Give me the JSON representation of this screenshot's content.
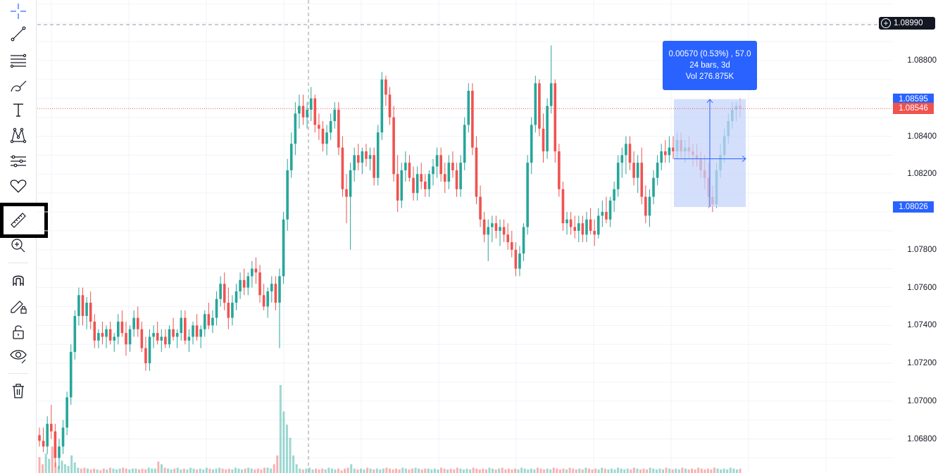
{
  "toolbar": {
    "tools": [
      {
        "name": "crosshair-icon",
        "label": "Crosshair"
      },
      {
        "name": "trend-line-icon",
        "label": "Trend line"
      },
      {
        "name": "fib-retracement-icon",
        "label": "Fib retracement"
      },
      {
        "name": "brush-icon",
        "label": "Brush"
      },
      {
        "name": "text-icon",
        "label": "Text"
      },
      {
        "name": "pattern-icon",
        "label": "Patterns"
      },
      {
        "name": "forecasting-icon",
        "label": "Prediction and measurement"
      },
      {
        "name": "heart-icon",
        "label": "Icons"
      },
      {
        "name": "ruler-icon",
        "label": "Measure"
      },
      {
        "name": "zoom-in-icon",
        "label": "Zoom in"
      },
      {
        "name": "magnet-icon",
        "label": "Magnet"
      },
      {
        "name": "pencil-lock-icon",
        "label": "Stay in drawing mode"
      },
      {
        "name": "lock-icon",
        "label": "Lock all drawings"
      },
      {
        "name": "eye-icon",
        "label": "Hide all drawings"
      },
      {
        "name": "trash-icon",
        "label": "Remove drawings"
      }
    ]
  },
  "price_axis": {
    "ticks": [
      "1.08800",
      "1.08400",
      "1.08200",
      "1.07800",
      "1.07600",
      "1.07400",
      "1.07200",
      "1.07000",
      "1.06800"
    ],
    "crosshair_price": "1.08990",
    "measure_top": "1.08595",
    "current_price": "1.08546",
    "measure_bottom": "1.08026"
  },
  "measure_tooltip": {
    "line1": "0.00570 (0.53%) , 57.0",
    "line2": "24 bars, 3d",
    "line3": "Vol 276.875K"
  },
  "colors": {
    "up": "#26a69a",
    "down": "#ef5350",
    "accent": "#2962ff",
    "measure_fill": "#c6d4fb"
  },
  "chart_data": {
    "type": "candlestick",
    "ylim": [
      1.0662,
      1.0912
    ],
    "candles": [
      [
        1.0682,
        1.0686,
        1.0676,
        1.0679
      ],
      [
        1.0679,
        1.0686,
        1.0673,
        1.0676
      ],
      [
        1.0676,
        1.0692,
        1.0672,
        1.0688
      ],
      [
        1.0688,
        1.0698,
        1.068,
        1.0684
      ],
      [
        1.0684,
        1.0688,
        1.0665,
        1.067
      ],
      [
        1.067,
        1.068,
        1.0664,
        1.0676
      ],
      [
        1.0676,
        1.069,
        1.0672,
        1.0686
      ],
      [
        1.0686,
        1.0705,
        1.0682,
        1.0702
      ],
      [
        1.0702,
        1.073,
        1.0698,
        1.0726
      ],
      [
        1.0726,
        1.0748,
        1.0722,
        1.0745
      ],
      [
        1.0745,
        1.076,
        1.074,
        1.0756
      ],
      [
        1.0756,
        1.076,
        1.074,
        1.0745
      ],
      [
        1.0745,
        1.0755,
        1.0738,
        1.0752
      ],
      [
        1.0752,
        1.0758,
        1.0738,
        1.0742
      ],
      [
        1.0742,
        1.0746,
        1.0728,
        1.0732
      ],
      [
        1.0732,
        1.0738,
        1.0728,
        1.0736
      ],
      [
        1.0736,
        1.0742,
        1.073,
        1.0734
      ],
      [
        1.0734,
        1.074,
        1.0728,
        1.0738
      ],
      [
        1.0738,
        1.0742,
        1.073,
        1.0732
      ],
      [
        1.0732,
        1.0736,
        1.0726,
        1.0734
      ],
      [
        1.0734,
        1.0746,
        1.073,
        1.0742
      ],
      [
        1.0742,
        1.0748,
        1.0734,
        1.0736
      ],
      [
        1.0736,
        1.0742,
        1.0724,
        1.073
      ],
      [
        1.073,
        1.074,
        1.0726,
        1.0738
      ],
      [
        1.0738,
        1.0748,
        1.0734,
        1.0744
      ],
      [
        1.0744,
        1.075,
        1.0734,
        1.0738
      ],
      [
        1.0738,
        1.0742,
        1.0726,
        1.0728
      ],
      [
        1.0728,
        1.0734,
        1.0716,
        1.072
      ],
      [
        1.072,
        1.0738,
        1.0716,
        1.0734
      ],
      [
        1.0734,
        1.074,
        1.0728,
        1.0736
      ],
      [
        1.0736,
        1.0742,
        1.073,
        1.0732
      ],
      [
        1.0732,
        1.0738,
        1.0726,
        1.0734
      ],
      [
        1.0734,
        1.0738,
        1.0728,
        1.073
      ],
      [
        1.073,
        1.074,
        1.0728,
        1.0738
      ],
      [
        1.0738,
        1.0744,
        1.0732,
        1.0734
      ],
      [
        1.0734,
        1.0738,
        1.0728,
        1.0736
      ],
      [
        1.0736,
        1.0748,
        1.0732,
        1.0744
      ],
      [
        1.0744,
        1.0748,
        1.073,
        1.0732
      ],
      [
        1.0732,
        1.0738,
        1.0726,
        1.0734
      ],
      [
        1.0734,
        1.0742,
        1.073,
        1.074
      ],
      [
        1.074,
        1.0746,
        1.0732,
        1.0734
      ],
      [
        1.0734,
        1.074,
        1.0728,
        1.0738
      ],
      [
        1.0738,
        1.0748,
        1.0734,
        1.0746
      ],
      [
        1.0746,
        1.0752,
        1.0738,
        1.074
      ],
      [
        1.074,
        1.0748,
        1.0736,
        1.0744
      ],
      [
        1.0744,
        1.0758,
        1.074,
        1.0754
      ],
      [
        1.0754,
        1.0766,
        1.075,
        1.0762
      ],
      [
        1.0762,
        1.0768,
        1.0748,
        1.0752
      ],
      [
        1.0752,
        1.076,
        1.0738,
        1.0744
      ],
      [
        1.0744,
        1.0756,
        1.074,
        1.0752
      ],
      [
        1.0752,
        1.0762,
        1.0748,
        1.0758
      ],
      [
        1.0758,
        1.0768,
        1.0754,
        1.0764
      ],
      [
        1.0764,
        1.077,
        1.0756,
        1.076
      ],
      [
        1.076,
        1.0768,
        1.0756,
        1.0766
      ],
      [
        1.0766,
        1.0774,
        1.076,
        1.077
      ],
      [
        1.077,
        1.0776,
        1.0762,
        1.0768
      ],
      [
        1.0768,
        1.0772,
        1.0752,
        1.0756
      ],
      [
        1.0756,
        1.0762,
        1.0748,
        1.075
      ],
      [
        1.075,
        1.076,
        1.0744,
        1.0758
      ],
      [
        1.0758,
        1.0766,
        1.0752,
        1.0762
      ],
      [
        1.0762,
        1.0766,
        1.0748,
        1.0752
      ],
      [
        1.0752,
        1.077,
        1.0728,
        1.0766
      ],
      [
        1.0766,
        1.08,
        1.0762,
        1.0796
      ],
      [
        1.0796,
        1.0828,
        1.079,
        1.0822
      ],
      [
        1.0822,
        1.0842,
        1.0818,
        1.0836
      ],
      [
        1.0836,
        1.0858,
        1.083,
        1.0852
      ],
      [
        1.0852,
        1.0862,
        1.0844,
        1.0856
      ],
      [
        1.0856,
        1.0862,
        1.0846,
        1.085
      ],
      [
        1.085,
        1.0858,
        1.0844,
        1.0854
      ],
      [
        1.0854,
        1.0866,
        1.0848,
        1.086
      ],
      [
        1.086,
        1.0862,
        1.0842,
        1.0846
      ],
      [
        1.0846,
        1.0852,
        1.0838,
        1.0844
      ],
      [
        1.0844,
        1.0848,
        1.0832,
        1.0836
      ],
      [
        1.0836,
        1.0846,
        1.083,
        1.0842
      ],
      [
        1.0842,
        1.0852,
        1.0838,
        1.0848
      ],
      [
        1.0848,
        1.0858,
        1.0844,
        1.0854
      ],
      [
        1.0854,
        1.0858,
        1.083,
        1.0834
      ],
      [
        1.0834,
        1.084,
        1.0808,
        1.0812
      ],
      [
        1.0812,
        1.082,
        1.0794,
        1.0808
      ],
      [
        1.0808,
        1.0826,
        1.078,
        1.0822
      ],
      [
        1.0822,
        1.0834,
        1.0816,
        1.083
      ],
      [
        1.083,
        1.0836,
        1.0822,
        1.0826
      ],
      [
        1.0826,
        1.0834,
        1.082,
        1.0832
      ],
      [
        1.0832,
        1.0836,
        1.0824,
        1.0828
      ],
      [
        1.0828,
        1.0834,
        1.0822,
        1.083
      ],
      [
        1.083,
        1.0834,
        1.0814,
        1.0818
      ],
      [
        1.0818,
        1.0846,
        1.0814,
        1.0842
      ],
      [
        1.0842,
        1.0874,
        1.0838,
        1.087
      ],
      [
        1.087,
        1.0872,
        1.0856,
        1.0862
      ],
      [
        1.0862,
        1.0866,
        1.0846,
        1.085
      ],
      [
        1.085,
        1.0856,
        1.0816,
        1.082
      ],
      [
        1.082,
        1.083,
        1.08,
        1.0806
      ],
      [
        1.0806,
        1.0826,
        1.0802,
        1.0822
      ],
      [
        1.0822,
        1.0832,
        1.0816,
        1.0826
      ],
      [
        1.0826,
        1.083,
        1.0816,
        1.0818
      ],
      [
        1.0818,
        1.0824,
        1.0806,
        1.081
      ],
      [
        1.081,
        1.0824,
        1.0806,
        1.082
      ],
      [
        1.082,
        1.0826,
        1.0812,
        1.0816
      ],
      [
        1.0816,
        1.082,
        1.0808,
        1.0812
      ],
      [
        1.0812,
        1.0822,
        1.0808,
        1.082
      ],
      [
        1.082,
        1.0828,
        1.0814,
        1.0824
      ],
      [
        1.0824,
        1.0834,
        1.0818,
        1.083
      ],
      [
        1.083,
        1.0834,
        1.0816,
        1.082
      ],
      [
        1.082,
        1.0826,
        1.081,
        1.0816
      ],
      [
        1.0816,
        1.083,
        1.0812,
        1.0826
      ],
      [
        1.0826,
        1.0832,
        1.0818,
        1.0822
      ],
      [
        1.0822,
        1.0826,
        1.0808,
        1.0812
      ],
      [
        1.0812,
        1.083,
        1.0808,
        1.0826
      ],
      [
        1.0826,
        1.085,
        1.0822,
        1.0846
      ],
      [
        1.0846,
        1.0868,
        1.0842,
        1.0864
      ],
      [
        1.0864,
        1.0868,
        1.083,
        1.0834
      ],
      [
        1.0834,
        1.084,
        1.0804,
        1.0808
      ],
      [
        1.0808,
        1.0814,
        1.0792,
        1.0796
      ],
      [
        1.0796,
        1.08,
        1.0784,
        1.0788
      ],
      [
        1.0788,
        1.0796,
        1.0774,
        1.0792
      ],
      [
        1.0792,
        1.0798,
        1.0784,
        1.0794
      ],
      [
        1.0794,
        1.0798,
        1.0786,
        1.079
      ],
      [
        1.079,
        1.0796,
        1.0782,
        1.0792
      ],
      [
        1.0792,
        1.0796,
        1.0784,
        1.0788
      ],
      [
        1.0788,
        1.0794,
        1.078,
        1.0784
      ],
      [
        1.0784,
        1.079,
        1.0776,
        1.078
      ],
      [
        1.078,
        1.0784,
        1.0766,
        1.077
      ],
      [
        1.077,
        1.0782,
        1.0766,
        1.0778
      ],
      [
        1.0778,
        1.0794,
        1.0774,
        1.0792
      ],
      [
        1.0792,
        1.083,
        1.0788,
        1.0826
      ],
      [
        1.0826,
        1.085,
        1.082,
        1.0846
      ],
      [
        1.0846,
        1.0872,
        1.0842,
        1.0868
      ],
      [
        1.0868,
        1.087,
        1.084,
        1.0844
      ],
      [
        1.0844,
        1.0852,
        1.0826,
        1.0832
      ],
      [
        1.0832,
        1.086,
        1.0828,
        1.0856
      ],
      [
        1.0856,
        1.0888,
        1.0852,
        1.0868
      ],
      [
        1.0868,
        1.087,
        1.0826,
        1.0832
      ],
      [
        1.0832,
        1.0836,
        1.0808,
        1.0812
      ],
      [
        1.0812,
        1.0816,
        1.079,
        1.0794
      ],
      [
        1.0794,
        1.08,
        1.0788,
        1.0796
      ],
      [
        1.0796,
        1.08,
        1.0788,
        1.0792
      ],
      [
        1.0792,
        1.0798,
        1.0786,
        1.079
      ],
      [
        1.079,
        1.0798,
        1.0784,
        1.0794
      ],
      [
        1.0794,
        1.0798,
        1.0784,
        1.0788
      ],
      [
        1.0788,
        1.08,
        1.0784,
        1.0796
      ],
      [
        1.0796,
        1.0802,
        1.0788,
        1.079
      ],
      [
        1.079,
        1.0796,
        1.0782,
        1.0788
      ],
      [
        1.0788,
        1.0802,
        1.0786,
        1.0798
      ],
      [
        1.0798,
        1.0806,
        1.0792,
        1.08
      ],
      [
        1.08,
        1.0808,
        1.0794,
        1.0796
      ],
      [
        1.0796,
        1.0808,
        1.0792,
        1.0806
      ],
      [
        1.0806,
        1.0816,
        1.08,
        1.0812
      ],
      [
        1.0812,
        1.083,
        1.0808,
        1.0826
      ],
      [
        1.0826,
        1.0834,
        1.0818,
        1.083
      ],
      [
        1.083,
        1.084,
        1.082,
        1.0836
      ],
      [
        1.0836,
        1.084,
        1.0822,
        1.0826
      ],
      [
        1.0826,
        1.0832,
        1.0814,
        1.0818
      ],
      [
        1.0818,
        1.083,
        1.081,
        1.0826
      ],
      [
        1.0826,
        1.0834,
        1.0804,
        1.0808
      ],
      [
        1.0808,
        1.0814,
        1.0794,
        1.0798
      ],
      [
        1.0798,
        1.0812,
        1.0792,
        1.0808
      ],
      [
        1.0808,
        1.0822,
        1.0804,
        1.0818
      ],
      [
        1.0818,
        1.083,
        1.0814,
        1.0826
      ],
      [
        1.0826,
        1.0836,
        1.0822,
        1.0832
      ],
      [
        1.0832,
        1.0838,
        1.0826,
        1.083
      ],
      [
        1.083,
        1.084,
        1.0826,
        1.0834
      ],
      [
        1.0834,
        1.084,
        1.0828,
        1.0832
      ],
      [
        1.0832,
        1.0842,
        1.0828,
        1.0838
      ],
      [
        1.0838,
        1.0842,
        1.0828,
        1.0832
      ],
      [
        1.0832,
        1.0838,
        1.0826,
        1.0834
      ],
      [
        1.0834,
        1.084,
        1.0828,
        1.0832
      ],
      [
        1.0832,
        1.0836,
        1.0824,
        1.083
      ],
      [
        1.083,
        1.0836,
        1.0824,
        1.0828
      ],
      [
        1.0828,
        1.0832,
        1.0818,
        1.0822
      ],
      [
        1.0822,
        1.083,
        1.0812,
        1.0818
      ],
      [
        1.0818,
        1.0826,
        1.0802,
        1.0808
      ],
      [
        1.0808,
        1.0814,
        1.08,
        1.0804
      ],
      [
        1.0804,
        1.0826,
        1.0802,
        1.0822
      ],
      [
        1.0822,
        1.0836,
        1.0818,
        1.083
      ],
      [
        1.083,
        1.0844,
        1.0826,
        1.084
      ],
      [
        1.084,
        1.0852,
        1.0836,
        1.0848
      ],
      [
        1.0848,
        1.0858,
        1.0844,
        1.0854
      ],
      [
        1.0854,
        1.0858,
        1.0848,
        1.0856
      ],
      [
        1.0856,
        1.086,
        1.085,
        1.0855
      ]
    ],
    "volume": [
      0.18,
      0.1,
      0.22,
      0.16,
      0.3,
      0.12,
      0.08,
      0.14,
      0.1,
      0.08,
      0.2,
      0.12,
      0.06,
      0.05,
      0.06,
      0.05,
      0.04,
      0.05,
      0.04,
      0.03,
      0.05,
      0.04,
      0.06,
      0.05,
      0.04,
      0.05,
      0.06,
      0.05,
      0.04,
      0.05,
      0.05,
      0.04,
      0.05,
      0.04,
      0.06,
      0.05,
      0.05,
      0.13,
      0.1,
      0.06,
      0.05,
      0.04,
      0.05,
      0.06,
      0.04,
      0.05,
      0.04,
      0.06,
      0.05,
      0.04,
      0.05,
      0.04,
      0.06,
      0.05,
      0.04,
      0.05,
      0.06,
      0.05,
      0.04,
      0.05,
      0.04,
      0.06,
      0.05,
      0.04,
      0.05,
      0.06,
      0.05,
      0.04,
      0.05,
      0.04,
      0.06,
      0.06,
      0.05,
      0.1,
      0.2,
      1.0,
      0.7,
      0.55,
      0.4,
      0.2,
      0.1,
      0.05,
      0.04,
      0.05,
      0.06,
      0.04,
      0.05,
      0.04,
      0.05,
      0.04,
      0.06,
      0.05,
      0.04,
      0.05,
      0.03,
      0.05,
      0.06,
      0.1,
      0.05,
      0.04,
      0.05,
      0.04,
      0.06,
      0.05,
      0.04,
      0.05,
      0.04,
      0.05,
      0.06,
      0.05,
      0.04,
      0.05,
      0.04,
      0.06,
      0.05,
      0.04,
      0.05,
      0.06,
      0.05,
      0.04,
      0.05,
      0.05,
      0.04,
      0.05,
      0.04,
      0.06,
      0.05,
      0.04,
      0.05,
      0.04,
      0.06,
      0.05,
      0.04,
      0.05,
      0.04,
      0.06,
      0.05,
      0.04,
      0.05,
      0.04,
      0.06,
      0.05,
      0.04,
      0.05,
      0.06,
      0.04,
      0.05,
      0.04,
      0.05,
      0.04,
      0.06,
      0.05,
      0.04,
      0.05,
      0.04,
      0.06,
      0.05,
      0.04,
      0.05,
      0.04,
      0.06,
      0.05,
      0.04,
      0.05,
      0.04,
      0.06,
      0.05,
      0.04,
      0.05,
      0.04,
      0.06,
      0.05,
      0.04,
      0.05,
      0.04,
      0.06,
      0.05,
      0.04,
      0.05,
      0.04,
      0.06,
      0.05,
      0.04,
      0.05,
      0.04,
      0.06,
      0.05,
      0.04,
      0.05,
      0.04,
      0.06,
      0.05,
      0.04,
      0.05,
      0.04,
      0.06,
      0.05,
      0.04,
      0.05,
      0.04,
      0.06,
      0.05,
      0.04,
      0.05,
      0.04,
      0.06,
      0.05,
      0.04,
      0.05,
      0.04,
      0.06,
      0.05,
      0.04,
      0.05,
      0.04,
      0.06,
      0.05,
      0.04,
      0.05
    ]
  }
}
